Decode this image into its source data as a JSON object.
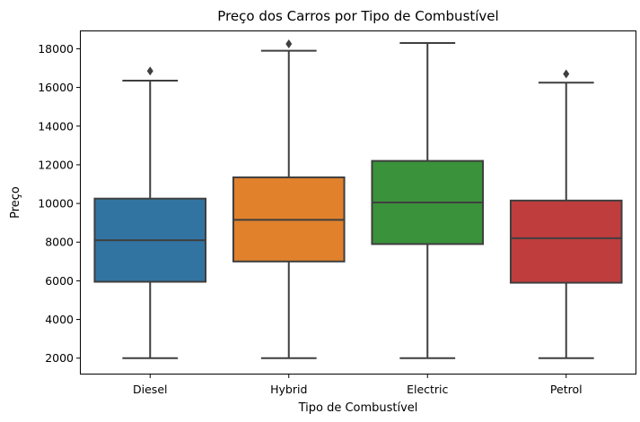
{
  "chart_data": {
    "type": "box",
    "title": "Preço dos Carros por Tipo de Combustível",
    "xlabel": "Tipo de Combustível",
    "ylabel": "Preço",
    "ylim": [
      1200,
      18900
    ],
    "yticks": [
      2000,
      4000,
      6000,
      8000,
      10000,
      12000,
      14000,
      16000,
      18000
    ],
    "ytick_labels": [
      "2000",
      "4000",
      "6000",
      "8000",
      "10000",
      "12000",
      "14000",
      "16000",
      "18000"
    ],
    "grid": false,
    "categories": [
      "Diesel",
      "Hybrid",
      "Electric",
      "Petrol"
    ],
    "boxes": [
      {
        "category": "Diesel",
        "color": "#3274a1",
        "whisker_low": 2000,
        "q1": 5950,
        "median": 8100,
        "q3": 10250,
        "whisker_high": 16350,
        "outliers": [
          16850
        ]
      },
      {
        "category": "Hybrid",
        "color": "#e1812c",
        "whisker_low": 2000,
        "q1": 7000,
        "median": 9150,
        "q3": 11350,
        "whisker_high": 17900,
        "outliers": [
          18250
        ]
      },
      {
        "category": "Electric",
        "color": "#3a923a",
        "whisker_low": 2000,
        "q1": 7900,
        "median": 10050,
        "q3": 12200,
        "whisker_high": 18300,
        "outliers": []
      },
      {
        "category": "Petrol",
        "color": "#c03d3e",
        "whisker_low": 2000,
        "q1": 5900,
        "median": 8200,
        "q3": 10150,
        "whisker_high": 16250,
        "outliers": [
          16700
        ]
      }
    ]
  }
}
